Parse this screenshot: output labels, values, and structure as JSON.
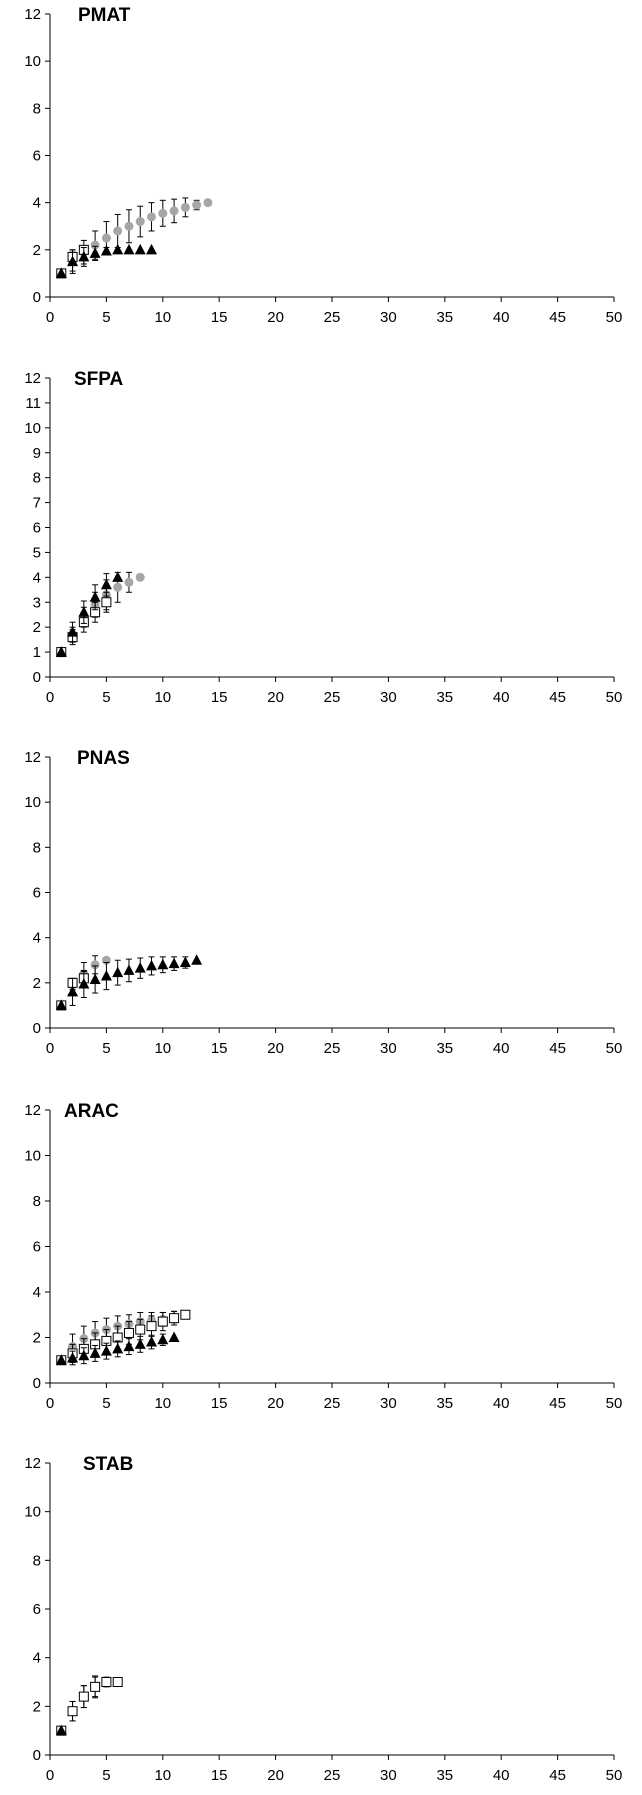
{
  "chart_data": [
    {
      "type": "scatter",
      "title": "PMAT",
      "xlim": [
        0,
        50
      ],
      "ylim": [
        0,
        12
      ],
      "xticks": [
        "0",
        "5",
        "10",
        "15",
        "20",
        "25",
        "30",
        "35",
        "40",
        "45",
        "50"
      ],
      "yticks": [
        "0",
        "2",
        "4",
        "6",
        "8",
        "10",
        "12"
      ],
      "grid": false,
      "series": [
        {
          "marker": "triangle",
          "color": "#000000",
          "x": [
            1,
            2,
            3,
            4,
            5,
            6,
            7,
            8,
            9
          ],
          "y": [
            1,
            1.5,
            1.7,
            1.85,
            1.95,
            2,
            2,
            2,
            2
          ],
          "err": [
            0,
            0.5,
            0.4,
            0.3,
            0.15,
            0,
            0,
            0,
            0
          ]
        },
        {
          "marker": "square",
          "color": "#ffffff",
          "x": [
            1,
            2,
            3
          ],
          "y": [
            1,
            1.7,
            2
          ],
          "err": [
            0,
            0.3,
            0
          ]
        },
        {
          "marker": "circle",
          "color": "#a6a6a6",
          "x": [
            1,
            2,
            3,
            4,
            5,
            6,
            7,
            8,
            9,
            10,
            11,
            12,
            13,
            14
          ],
          "y": [
            1,
            1.5,
            1.9,
            2.2,
            2.5,
            2.8,
            3.0,
            3.2,
            3.4,
            3.55,
            3.65,
            3.8,
            3.9,
            4.0
          ],
          "err": [
            0,
            0.4,
            0.5,
            0.6,
            0.7,
            0.7,
            0.7,
            0.65,
            0.6,
            0.55,
            0.5,
            0.4,
            0.2,
            0
          ]
        }
      ]
    },
    {
      "type": "scatter",
      "title": "SFPA",
      "xlim": [
        0,
        50
      ],
      "ylim": [
        0,
        12
      ],
      "xticks": [
        "0",
        "5",
        "10",
        "15",
        "20",
        "25",
        "30",
        "35",
        "40",
        "45",
        "50"
      ],
      "yticks": [
        "0",
        "1",
        "2",
        "3",
        "4",
        "5",
        "6",
        "7",
        "8",
        "9",
        "10",
        "11",
        "12"
      ],
      "grid": false,
      "series": [
        {
          "marker": "triangle",
          "color": "#000000",
          "x": [
            1,
            2,
            3,
            4,
            5,
            6
          ],
          "y": [
            1,
            1.8,
            2.6,
            3.2,
            3.7,
            4
          ],
          "err": [
            0,
            0.4,
            0.45,
            0.5,
            0.45,
            0
          ]
        },
        {
          "marker": "square",
          "color": "#ffffff",
          "x": [
            1,
            2,
            3,
            4,
            5
          ],
          "y": [
            1,
            1.6,
            2.2,
            2.6,
            3.0
          ],
          "err": [
            0,
            0.3,
            0.4,
            0.4,
            0.4
          ]
        },
        {
          "marker": "circle",
          "color": "#a6a6a6",
          "x": [
            1,
            2,
            3,
            4,
            5,
            6,
            7,
            8
          ],
          "y": [
            1,
            1.7,
            2.4,
            2.9,
            3.3,
            3.6,
            3.8,
            4.0
          ],
          "err": [
            0,
            0.3,
            0.4,
            0.5,
            0.6,
            0.6,
            0.4,
            0
          ]
        }
      ]
    },
    {
      "type": "scatter",
      "title": "PNAS",
      "xlim": [
        0,
        50
      ],
      "ylim": [
        0,
        12
      ],
      "xticks": [
        "0",
        "5",
        "10",
        "15",
        "20",
        "25",
        "30",
        "35",
        "40",
        "45",
        "50"
      ],
      "yticks": [
        "0",
        "2",
        "4",
        "6",
        "8",
        "10",
        "12"
      ],
      "grid": false,
      "series": [
        {
          "marker": "triangle",
          "color": "#000000",
          "x": [
            1,
            2,
            3,
            4,
            5,
            6,
            7,
            8,
            9,
            10,
            11,
            12,
            13
          ],
          "y": [
            1,
            1.6,
            1.95,
            2.15,
            2.3,
            2.45,
            2.55,
            2.65,
            2.75,
            2.8,
            2.85,
            2.9,
            3.0
          ],
          "err": [
            0,
            0.6,
            0.6,
            0.6,
            0.6,
            0.55,
            0.5,
            0.45,
            0.4,
            0.35,
            0.3,
            0.25,
            0
          ]
        },
        {
          "marker": "square",
          "color": "#ffffff",
          "x": [
            1,
            2,
            3
          ],
          "y": [
            1,
            2,
            2.2
          ],
          "err": [
            0,
            0,
            0.3
          ]
        },
        {
          "marker": "circle",
          "color": "#a6a6a6",
          "x": [
            1,
            2,
            3,
            4,
            5
          ],
          "y": [
            1,
            1.9,
            2.4,
            2.8,
            3.0
          ],
          "err": [
            0,
            0.2,
            0.5,
            0.4,
            0
          ]
        }
      ]
    },
    {
      "type": "scatter",
      "title": "ARAC",
      "xlim": [
        0,
        50
      ],
      "ylim": [
        0,
        12
      ],
      "xticks": [
        "0",
        "5",
        "10",
        "15",
        "20",
        "25",
        "30",
        "35",
        "40",
        "45",
        "50"
      ],
      "yticks": [
        "0",
        "2",
        "4",
        "6",
        "8",
        "10",
        "12"
      ],
      "grid": false,
      "series": [
        {
          "marker": "triangle",
          "color": "#000000",
          "x": [
            1,
            2,
            3,
            4,
            5,
            6,
            7,
            8,
            9,
            10,
            11
          ],
          "y": [
            1,
            1.1,
            1.2,
            1.3,
            1.4,
            1.5,
            1.6,
            1.7,
            1.8,
            1.9,
            2.0
          ],
          "err": [
            0,
            0.3,
            0.35,
            0.35,
            0.35,
            0.35,
            0.35,
            0.35,
            0.3,
            0.25,
            0
          ]
        },
        {
          "marker": "square",
          "color": "#ffffff",
          "x": [
            1,
            2,
            3,
            4,
            5,
            6,
            7,
            8,
            9,
            10,
            11,
            12
          ],
          "y": [
            1,
            1.3,
            1.5,
            1.7,
            1.85,
            2.0,
            2.2,
            2.35,
            2.5,
            2.7,
            2.85,
            3.0
          ],
          "err": [
            0,
            0.4,
            0.45,
            0.5,
            0.5,
            0.5,
            0.5,
            0.45,
            0.45,
            0.4,
            0.3,
            0
          ]
        },
        {
          "marker": "circle",
          "color": "#a6a6a6",
          "x": [
            1,
            2,
            3,
            4,
            5,
            6,
            7,
            8,
            9,
            10,
            11,
            12
          ],
          "y": [
            1,
            1.6,
            1.95,
            2.2,
            2.35,
            2.5,
            2.6,
            2.7,
            2.75,
            2.8,
            2.9,
            3.0
          ],
          "err": [
            0,
            0.55,
            0.55,
            0.5,
            0.5,
            0.45,
            0.4,
            0.4,
            0.35,
            0.3,
            0.25,
            0
          ]
        }
      ]
    },
    {
      "type": "scatter",
      "title": "STAB",
      "xlim": [
        0,
        50
      ],
      "ylim": [
        0,
        12
      ],
      "xticks": [
        "0",
        "5",
        "10",
        "15",
        "20",
        "25",
        "30",
        "35",
        "40",
        "45",
        "50"
      ],
      "yticks": [
        "0",
        "2",
        "4",
        "6",
        "8",
        "10",
        "12"
      ],
      "grid": false,
      "series": [
        {
          "marker": "triangle",
          "color": "#000000",
          "x": [
            1
          ],
          "y": [
            1
          ],
          "err": [
            0
          ]
        },
        {
          "marker": "square",
          "color": "#ffffff",
          "x": [
            1,
            2,
            3,
            4,
            5,
            6
          ],
          "y": [
            1,
            1.8,
            2.4,
            2.8,
            3.0,
            3.0
          ],
          "err": [
            0,
            0.4,
            0.45,
            0.45,
            0.2,
            0
          ]
        },
        {
          "marker": "circle",
          "color": "#a6a6a6",
          "x": [
            1,
            2,
            3,
            4,
            5
          ],
          "y": [
            1,
            1.8,
            2.4,
            2.8,
            3.0
          ],
          "err": [
            0,
            0.4,
            0.45,
            0.4,
            0
          ]
        }
      ]
    }
  ]
}
